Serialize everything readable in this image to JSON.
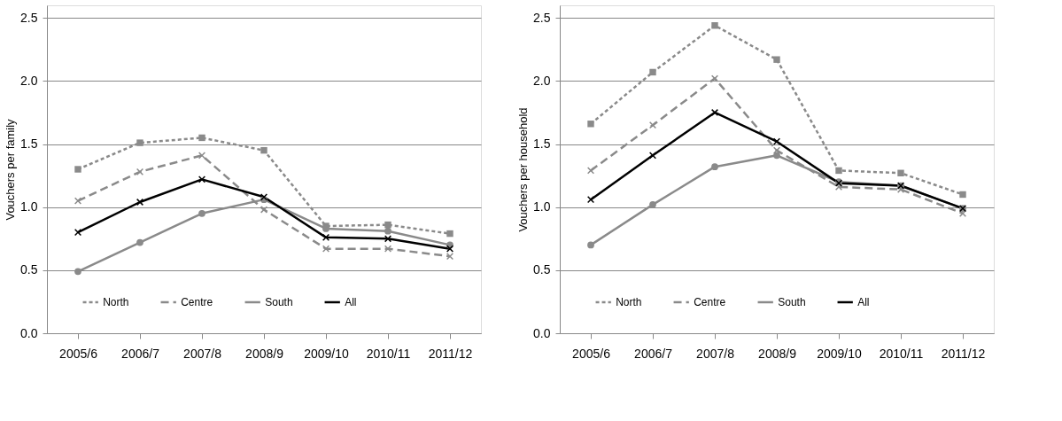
{
  "chart_data": [
    {
      "type": "line",
      "ylabel": "Vouchers per family",
      "categories": [
        "2005/6",
        "2006/7",
        "2007/8",
        "2008/9",
        "2009/10",
        "2010/11",
        "2011/12"
      ],
      "ylim": [
        0,
        2.6
      ],
      "yticks": [
        {
          "value": 0,
          "label": "0.0"
        },
        0.5,
        {
          "value": 1,
          "label": "1.0"
        },
        1.5,
        {
          "value": 2,
          "label": "2.0"
        },
        2.5
      ],
      "grid": "y",
      "legend": "bottom",
      "series": [
        {
          "name": "North",
          "color": "#8a8a8a",
          "marker": "square",
          "line_style": "dotted",
          "values": [
            1.3,
            1.51,
            1.55,
            1.45,
            0.85,
            0.86,
            0.79
          ]
        },
        {
          "name": "Centre",
          "color": "#8a8a8a",
          "marker": "cross",
          "line_style": "dashed",
          "values": [
            1.05,
            1.28,
            1.41,
            0.98,
            0.67,
            0.67,
            0.61
          ]
        },
        {
          "name": "South",
          "color": "#8a8a8a",
          "marker": "circle",
          "line_style": "solid",
          "values": [
            0.49,
            0.72,
            0.95,
            1.06,
            0.83,
            0.81,
            0.7
          ]
        },
        {
          "name": "All",
          "color": "#000000",
          "marker": "cross",
          "line_style": "solid",
          "values": [
            0.8,
            1.04,
            1.22,
            1.08,
            0.76,
            0.75,
            0.67
          ]
        }
      ]
    },
    {
      "type": "line",
      "ylabel": "Vouchers per household",
      "categories": [
        "2005/6",
        "2006/7",
        "2007/8",
        "2008/9",
        "2009/10",
        "2010/11",
        "2011/12"
      ],
      "ylim": [
        0,
        2.6
      ],
      "yticks": [
        {
          "value": 0,
          "label": "0.0"
        },
        0.5,
        {
          "value": 1,
          "label": "1.0"
        },
        1.5,
        {
          "value": 2,
          "label": "2.0"
        },
        2.5
      ],
      "grid": "y",
      "legend": "bottom",
      "series": [
        {
          "name": "North",
          "color": "#8a8a8a",
          "marker": "square",
          "line_style": "dotted",
          "values": [
            1.66,
            2.07,
            2.44,
            2.17,
            1.29,
            1.27,
            1.1
          ]
        },
        {
          "name": "Centre",
          "color": "#8a8a8a",
          "marker": "cross",
          "line_style": "dashed",
          "values": [
            1.29,
            1.65,
            2.02,
            1.45,
            1.16,
            1.14,
            0.95
          ]
        },
        {
          "name": "South",
          "color": "#8a8a8a",
          "marker": "circle",
          "line_style": "solid",
          "values": [
            0.7,
            1.02,
            1.32,
            1.41,
            1.2,
            1.17,
            0.99
          ]
        },
        {
          "name": "All",
          "color": "#000000",
          "marker": "cross",
          "line_style": "solid",
          "values": [
            1.06,
            1.41,
            1.75,
            1.52,
            1.19,
            1.17,
            0.99
          ]
        }
      ]
    }
  ]
}
